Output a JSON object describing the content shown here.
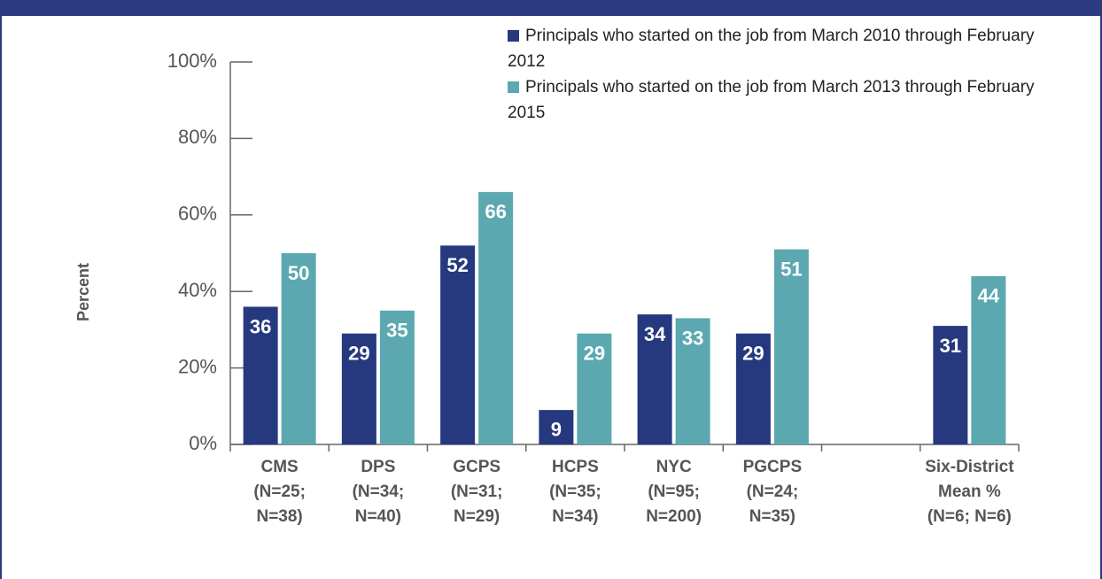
{
  "chart_data": {
    "type": "bar",
    "y_label": "Percent",
    "categories": [
      "CMS\n(N=25;\nN=38)",
      "DPS\n(N=34;\nN=40)",
      "GCPS\n(N=31;\nN=29)",
      "HCPS\n(N=35;\nN=34)",
      "NYC\n(N=95;\nN=200)",
      "PGCPS\n(N=24;\nN=35)",
      null,
      "Six-District\nMean %\n(N=6; N=6)"
    ],
    "series": [
      {
        "name": "Principals who started on the job from March 2010 through February 2012",
        "color": "#26397f",
        "values": [
          36,
          29,
          52,
          9,
          34,
          29,
          null,
          31
        ]
      },
      {
        "name": "Principals who started on the job from March 2013 through February 2015",
        "color": "#5ba8b0",
        "values": [
          50,
          35,
          66,
          29,
          33,
          51,
          null,
          44
        ]
      }
    ],
    "ylim": [
      0,
      100
    ],
    "yticks": [
      {
        "value": 0,
        "label": "0%"
      },
      {
        "value": 20,
        "label": "20%"
      },
      {
        "value": 40,
        "label": "40%"
      },
      {
        "value": 60,
        "label": "60%"
      },
      {
        "value": 80,
        "label": "80%"
      },
      {
        "value": 100,
        "label": "100%"
      }
    ],
    "legend": "top-right"
  }
}
